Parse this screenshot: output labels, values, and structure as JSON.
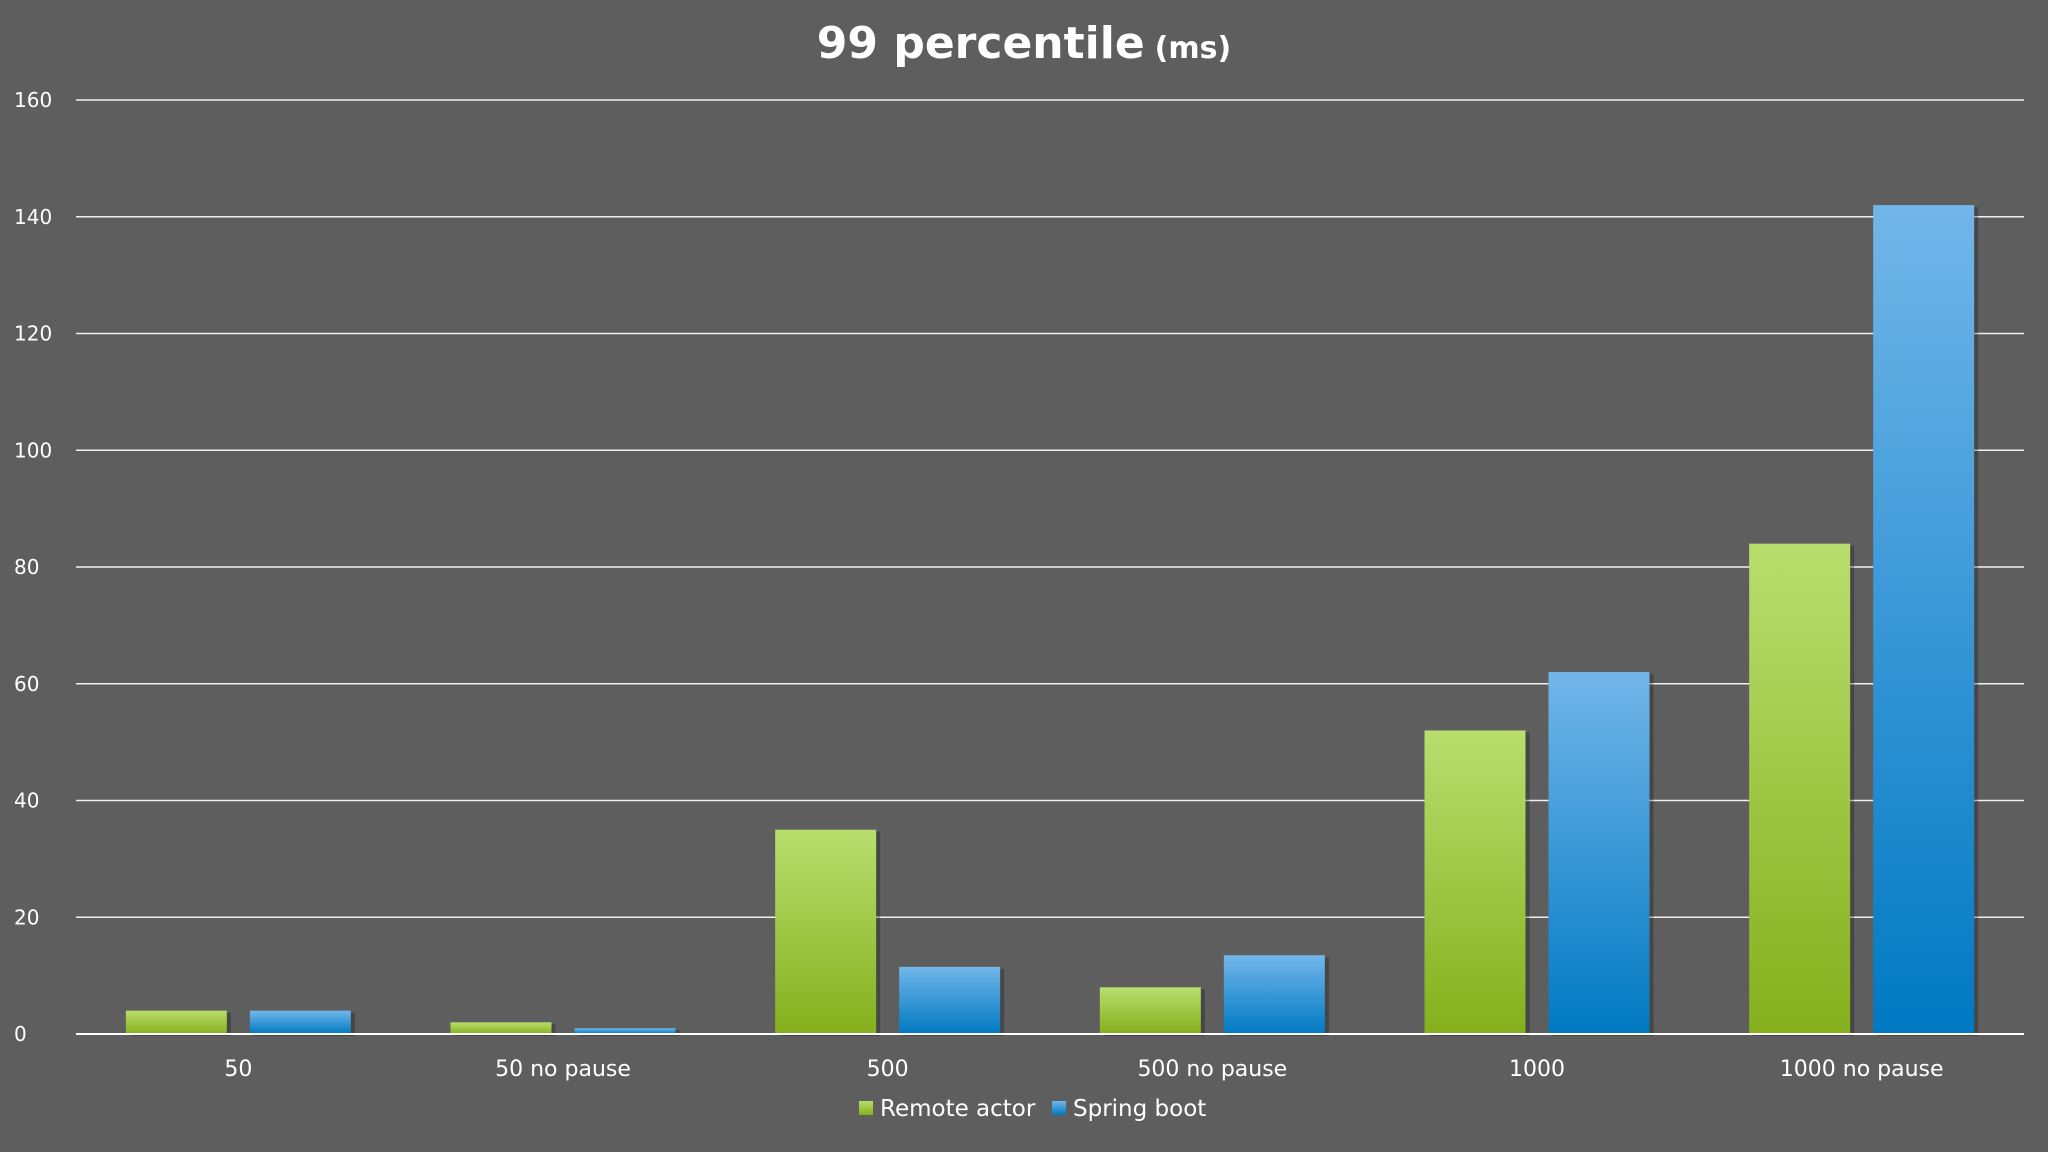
{
  "chart_data": {
    "type": "bar",
    "title": "99 percentile",
    "subtitle": "(ms)",
    "xlabel": "",
    "ylabel": "",
    "categories": [
      "50",
      "50 no pause",
      "500",
      "500 no pause",
      "1000",
      "1000 no pause"
    ],
    "series": [
      {
        "name": "Remote actor",
        "values": [
          4,
          2,
          35,
          8,
          52,
          84
        ]
      },
      {
        "name": "Spring boot",
        "values": [
          4,
          1,
          11.5,
          13.5,
          62,
          142
        ]
      }
    ],
    "ylim": [
      0,
      160
    ],
    "yticks": [
      0,
      20,
      40,
      60,
      80,
      100,
      120,
      140,
      160
    ],
    "grid": true,
    "legend": "bottom-center"
  },
  "colors": {
    "background": "#5e5e5e",
    "remote_actor_top": "#b8de6e",
    "remote_actor_bottom": "#84b01c",
    "spring_boot_top": "#72b6ea",
    "spring_boot_bottom": "#0079c2"
  }
}
